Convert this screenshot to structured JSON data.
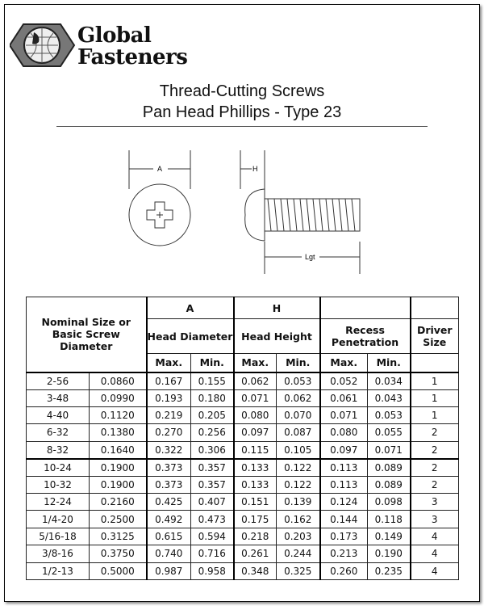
{
  "brand": {
    "line1": "Global",
    "line2": "Fasteners"
  },
  "title": {
    "line1": "Thread-Cutting Screws",
    "line2": "Pan Head Phillips - Type 23"
  },
  "diagram": {
    "label_a": "A",
    "label_h": "H",
    "label_lgt": "Lgt"
  },
  "table": {
    "head_nominal": "Nominal Size or Basic Screw Diameter",
    "group_a": "A",
    "group_h": "H",
    "head_diameter": "Head Diameter",
    "head_height": "Head Height",
    "recess": "Recess Penetration",
    "driver": "Driver Size",
    "max": "Max.",
    "min": "Min.",
    "rows": [
      [
        "2-56",
        "0.0860",
        "0.167",
        "0.155",
        "0.062",
        "0.053",
        "0.052",
        "0.034",
        "1"
      ],
      [
        "3-48",
        "0.0990",
        "0.193",
        "0.180",
        "0.071",
        "0.062",
        "0.061",
        "0.043",
        "1"
      ],
      [
        "4-40",
        "0.1120",
        "0.219",
        "0.205",
        "0.080",
        "0.070",
        "0.071",
        "0.053",
        "1"
      ],
      [
        "6-32",
        "0.1380",
        "0.270",
        "0.256",
        "0.097",
        "0.087",
        "0.080",
        "0.055",
        "2"
      ],
      [
        "8-32",
        "0.1640",
        "0.322",
        "0.306",
        "0.115",
        "0.105",
        "0.097",
        "0.071",
        "2"
      ],
      [
        "10-24",
        "0.1900",
        "0.373",
        "0.357",
        "0.133",
        "0.122",
        "0.113",
        "0.089",
        "2"
      ],
      [
        "10-32",
        "0.1900",
        "0.373",
        "0.357",
        "0.133",
        "0.122",
        "0.113",
        "0.089",
        "2"
      ],
      [
        "12-24",
        "0.2160",
        "0.425",
        "0.407",
        "0.151",
        "0.139",
        "0.124",
        "0.098",
        "3"
      ],
      [
        "1/4-20",
        "0.2500",
        "0.492",
        "0.473",
        "0.175",
        "0.162",
        "0.144",
        "0.118",
        "3"
      ],
      [
        "5/16-18",
        "0.3125",
        "0.615",
        "0.594",
        "0.218",
        "0.203",
        "0.173",
        "0.149",
        "4"
      ],
      [
        "3/8-16",
        "0.3750",
        "0.740",
        "0.716",
        "0.261",
        "0.244",
        "0.213",
        "0.190",
        "4"
      ],
      [
        "1/2-13",
        "0.5000",
        "0.987",
        "0.958",
        "0.348",
        "0.325",
        "0.260",
        "0.235",
        "4"
      ]
    ]
  }
}
